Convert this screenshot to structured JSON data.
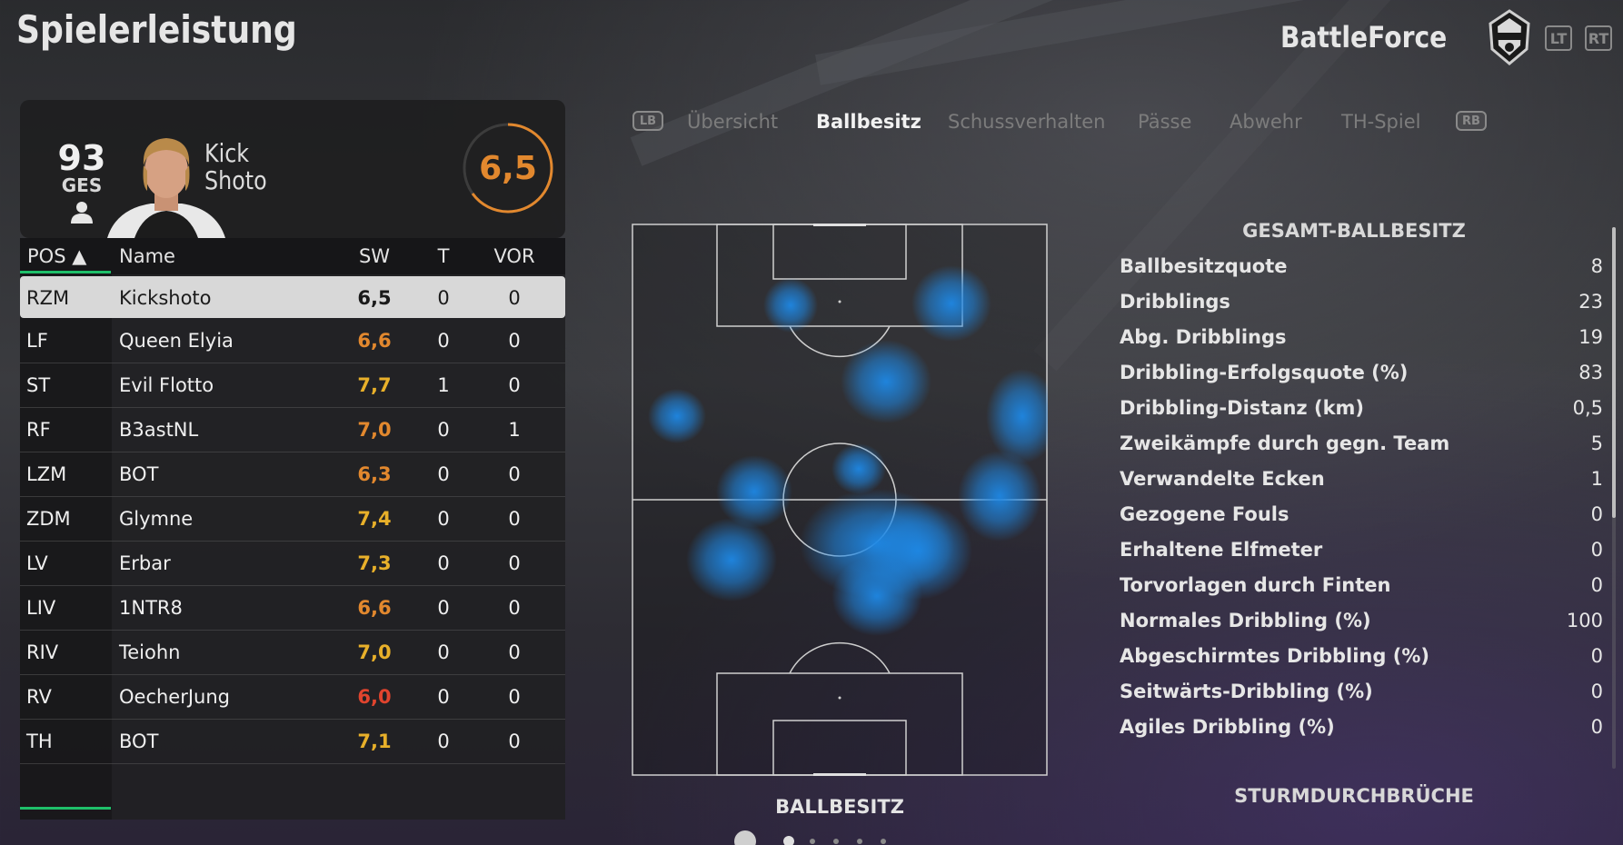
{
  "header": {
    "title": "Spielerleistung",
    "team_name": "BattleForce",
    "bumper_left": "LT",
    "bumper_right": "RT"
  },
  "player_card": {
    "overall": "93",
    "overall_label": "GES",
    "first_name": "Kick",
    "last_name": "Shoto",
    "rating": "6,5",
    "rating_color": "#e2882e"
  },
  "table": {
    "headers": {
      "pos": "POS ▲",
      "name": "Name",
      "sw": "SW",
      "t": "T",
      "vor": "VOR"
    },
    "rows": [
      {
        "pos": "RZM",
        "name": "Kickshoto",
        "sw": "6,5",
        "sw_color": "#1a1a1a",
        "t": "0",
        "vor": "0",
        "selected": true
      },
      {
        "pos": "LF",
        "name": "Queen Elyia",
        "sw": "6,6",
        "sw_color": "#e2882e",
        "t": "0",
        "vor": "0"
      },
      {
        "pos": "ST",
        "name": "Evil Flotto",
        "sw": "7,7",
        "sw_color": "#e8b02a",
        "t": "1",
        "vor": "0"
      },
      {
        "pos": "RF",
        "name": "B3astNL",
        "sw": "7,0",
        "sw_color": "#e2882e",
        "t": "0",
        "vor": "1"
      },
      {
        "pos": "LZM",
        "name": "BOT",
        "sw": "6,3",
        "sw_color": "#e2882e",
        "t": "0",
        "vor": "0"
      },
      {
        "pos": "ZDM",
        "name": "Glymne",
        "sw": "7,4",
        "sw_color": "#e8b02a",
        "t": "0",
        "vor": "0"
      },
      {
        "pos": "LV",
        "name": "Erbar",
        "sw": "7,3",
        "sw_color": "#e8b02a",
        "t": "0",
        "vor": "0"
      },
      {
        "pos": "LIV",
        "name": "1NTR8",
        "sw": "6,6",
        "sw_color": "#e2882e",
        "t": "0",
        "vor": "0"
      },
      {
        "pos": "RIV",
        "name": "Teiohn",
        "sw": "7,0",
        "sw_color": "#e8b02a",
        "t": "0",
        "vor": "0"
      },
      {
        "pos": "RV",
        "name": "OecherJung",
        "sw": "6,0",
        "sw_color": "#e0442e",
        "t": "0",
        "vor": "0"
      },
      {
        "pos": "TH",
        "name": "BOT",
        "sw": "7,1",
        "sw_color": "#e8b02a",
        "t": "0",
        "vor": "0"
      }
    ]
  },
  "tabs": {
    "lb": "LB",
    "rb": "RB",
    "items": [
      "Übersicht",
      "Ballbesitz",
      "Schussverhalten",
      "Pässe",
      "Abwehr",
      "TH-Spiel"
    ],
    "active_index": 1
  },
  "heatmap": {
    "label": "BALLBESITZ",
    "color": "#1e88e5"
  },
  "stats": {
    "title": "GESAMT-BALLBESITZ",
    "rows": [
      {
        "label": "Ballbesitzquote",
        "value": "8"
      },
      {
        "label": "Dribblings",
        "value": "23"
      },
      {
        "label": "Abg. Dribblings",
        "value": "19"
      },
      {
        "label": "Dribbling-Erfolgsquote (%)",
        "value": "83"
      },
      {
        "label": "Dribbling-Distanz (km)",
        "value": "0,5"
      },
      {
        "label": "Zweikämpfe durch gegn. Team",
        "value": "5"
      },
      {
        "label": "Verwandelte Ecken",
        "value": "1"
      },
      {
        "label": "Gezogene Fouls",
        "value": "0"
      },
      {
        "label": "Erhaltene Elfmeter",
        "value": "0"
      },
      {
        "label": "Torvorlagen durch Finten",
        "value": "0"
      },
      {
        "label": "Normales Dribbling (%)",
        "value": "100"
      },
      {
        "label": "Abgeschirmtes Dribbling (%)",
        "value": "0"
      },
      {
        "label": "Seitwärts-Dribbling (%)",
        "value": "0"
      },
      {
        "label": "Agiles Dribbling (%)",
        "value": "0"
      }
    ],
    "next_section": "STURMDURCHBRÜCHE"
  }
}
